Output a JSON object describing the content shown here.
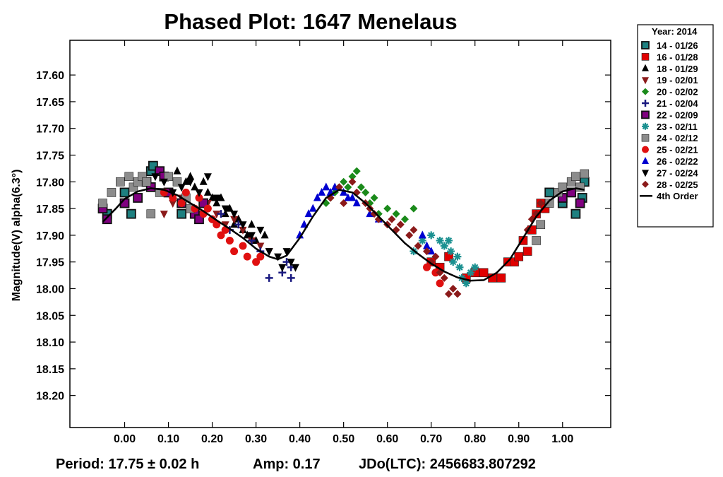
{
  "chart_data": {
    "type": "scatter",
    "title": "Phased Plot: 1647 Menelaus",
    "xlabel": "",
    "ylabel": "Magnitude(V) alpha(6.3°)",
    "xlim": [
      -0.125,
      1.11
    ],
    "ylim": [
      17.535,
      18.26
    ],
    "y_inverted": true,
    "x_ticks": [
      "0.00",
      "0.10",
      "0.20",
      "0.30",
      "0.40",
      "0.50",
      "0.60",
      "0.70",
      "0.80",
      "0.90",
      "1.00"
    ],
    "y_ticks": [
      "17.60",
      "17.65",
      "17.70",
      "17.75",
      "17.80",
      "17.85",
      "17.90",
      "17.95",
      "18.00",
      "18.05",
      "18.10",
      "18.15",
      "18.20"
    ],
    "legend_title": "Year: 2014",
    "legend_position": "outside-top-right",
    "footer": {
      "period": "Period: 17.75 ± 0.02 h",
      "amp": "Amp: 0.17",
      "jdo": "JDo(LTC): 2456683.807292"
    },
    "fit": {
      "name": "4th Order",
      "color": "#000000",
      "points": [
        [
          -0.05,
          17.875
        ],
        [
          -0.02,
          17.85
        ],
        [
          0.0,
          17.832
        ],
        [
          0.03,
          17.818
        ],
        [
          0.06,
          17.812
        ],
        [
          0.09,
          17.815
        ],
        [
          0.12,
          17.825
        ],
        [
          0.15,
          17.84
        ],
        [
          0.18,
          17.855
        ],
        [
          0.21,
          17.872
        ],
        [
          0.24,
          17.888
        ],
        [
          0.27,
          17.905
        ],
        [
          0.3,
          17.925
        ],
        [
          0.33,
          17.94
        ],
        [
          0.35,
          17.945
        ],
        [
          0.37,
          17.938
        ],
        [
          0.4,
          17.905
        ],
        [
          0.43,
          17.865
        ],
        [
          0.46,
          17.83
        ],
        [
          0.49,
          17.815
        ],
        [
          0.52,
          17.82
        ],
        [
          0.55,
          17.84
        ],
        [
          0.58,
          17.865
        ],
        [
          0.61,
          17.89
        ],
        [
          0.64,
          17.915
        ],
        [
          0.67,
          17.935
        ],
        [
          0.7,
          17.953
        ],
        [
          0.73,
          17.968
        ],
        [
          0.76,
          17.979
        ],
        [
          0.79,
          17.985
        ],
        [
          0.82,
          17.984
        ],
        [
          0.85,
          17.97
        ],
        [
          0.88,
          17.945
        ],
        [
          0.91,
          17.905
        ],
        [
          0.94,
          17.865
        ],
        [
          0.97,
          17.835
        ],
        [
          1.0,
          17.818
        ],
        [
          1.03,
          17.812
        ],
        [
          1.05,
          17.815
        ]
      ]
    },
    "series": [
      {
        "name": "14 - 01/26",
        "marker": "square-outline",
        "color": "#1e8080",
        "points": [
          [
            -0.04,
            17.86
          ],
          [
            0.0,
            17.82
          ],
          [
            0.015,
            17.86
          ],
          [
            0.06,
            17.78
          ],
          [
            0.065,
            17.77
          ],
          [
            0.13,
            17.86
          ],
          [
            0.97,
            17.82
          ],
          [
            1.0,
            17.84
          ],
          [
            1.03,
            17.86
          ],
          [
            1.045,
            17.83
          ],
          [
            1.05,
            17.8
          ]
        ]
      },
      {
        "name": "16 - 01/28",
        "marker": "square",
        "color": "#e00000",
        "points": [
          [
            0.7,
            17.95
          ],
          [
            0.72,
            17.96
          ],
          [
            0.74,
            17.94
          ],
          [
            0.78,
            17.98
          ],
          [
            0.8,
            17.97
          ],
          [
            0.82,
            17.97
          ],
          [
            0.84,
            17.98
          ],
          [
            0.86,
            17.98
          ],
          [
            0.875,
            17.95
          ],
          [
            0.89,
            17.95
          ],
          [
            0.9,
            17.94
          ],
          [
            0.91,
            17.91
          ],
          [
            0.92,
            17.93
          ],
          [
            0.93,
            17.89
          ],
          [
            0.94,
            17.86
          ],
          [
            0.95,
            17.84
          ],
          [
            0.96,
            17.85
          ]
        ]
      },
      {
        "name": "18 - 01/29",
        "marker": "triangle-up",
        "color": "#000000",
        "points": [
          [
            0.08,
            17.78
          ],
          [
            0.1,
            17.79
          ],
          [
            0.12,
            17.78
          ],
          [
            0.14,
            17.8
          ],
          [
            0.15,
            17.79
          ],
          [
            0.16,
            17.81
          ],
          [
            0.18,
            17.8
          ],
          [
            0.19,
            17.82
          ],
          [
            0.2,
            17.83
          ],
          [
            0.21,
            17.84
          ],
          [
            0.22,
            17.83
          ],
          [
            0.23,
            17.86
          ],
          [
            0.24,
            17.85
          ],
          [
            0.25,
            17.88
          ],
          [
            0.26,
            17.87
          ],
          [
            0.27,
            17.89
          ],
          [
            0.28,
            17.9
          ],
          [
            0.29,
            17.88
          ],
          [
            0.3,
            17.91
          ],
          [
            0.32,
            17.9
          ]
        ]
      },
      {
        "name": "19 - 02/01",
        "marker": "triangle-down",
        "color": "#8b1a1a",
        "points": [
          [
            0.09,
            17.86
          ],
          [
            0.11,
            17.84
          ],
          [
            0.13,
            17.83
          ],
          [
            0.15,
            17.85
          ],
          [
            0.17,
            17.86
          ],
          [
            0.19,
            17.84
          ],
          [
            0.21,
            17.86
          ],
          [
            0.23,
            17.88
          ],
          [
            0.25,
            17.87
          ],
          [
            0.27,
            17.89
          ],
          [
            0.29,
            17.91
          ],
          [
            0.31,
            17.92
          ],
          [
            0.33,
            17.93
          ]
        ]
      },
      {
        "name": "20 - 02/02",
        "marker": "diamond",
        "color": "#1a8a1a",
        "points": [
          [
            0.46,
            17.84
          ],
          [
            0.47,
            17.83
          ],
          [
            0.48,
            17.82
          ],
          [
            0.49,
            17.81
          ],
          [
            0.5,
            17.8
          ],
          [
            0.51,
            17.81
          ],
          [
            0.52,
            17.79
          ],
          [
            0.53,
            17.78
          ],
          [
            0.54,
            17.81
          ],
          [
            0.55,
            17.82
          ],
          [
            0.56,
            17.84
          ],
          [
            0.57,
            17.83
          ],
          [
            0.58,
            17.86
          ],
          [
            0.6,
            17.85
          ],
          [
            0.62,
            17.86
          ],
          [
            0.64,
            17.87
          ],
          [
            0.66,
            17.85
          ]
        ]
      },
      {
        "name": "21 - 02/04",
        "marker": "plus",
        "color": "#1a1a80",
        "points": [
          [
            0.2,
            17.87
          ],
          [
            0.22,
            17.86
          ],
          [
            0.24,
            17.89
          ],
          [
            0.26,
            17.88
          ],
          [
            0.29,
            17.91
          ],
          [
            0.31,
            17.93
          ],
          [
            0.33,
            17.98
          ],
          [
            0.36,
            17.97
          ],
          [
            0.37,
            17.95
          ],
          [
            0.38,
            17.98
          ],
          [
            0.38,
            17.96
          ]
        ]
      },
      {
        "name": "22 - 02/09",
        "marker": "square-outline",
        "color": "#800080",
        "points": [
          [
            -0.05,
            17.85
          ],
          [
            -0.04,
            17.87
          ],
          [
            0.0,
            17.84
          ],
          [
            0.03,
            17.83
          ],
          [
            0.05,
            17.8
          ],
          [
            0.06,
            17.81
          ],
          [
            0.08,
            17.78
          ],
          [
            0.09,
            17.79
          ],
          [
            0.1,
            17.82
          ],
          [
            0.13,
            17.84
          ],
          [
            0.16,
            17.86
          ],
          [
            0.17,
            17.87
          ],
          [
            0.18,
            17.84
          ],
          [
            1.0,
            17.83
          ],
          [
            1.02,
            17.82
          ],
          [
            1.04,
            17.84
          ]
        ]
      },
      {
        "name": "23 - 02/11",
        "marker": "asterisk",
        "color": "#1a9090",
        "points": [
          [
            0.66,
            17.93
          ],
          [
            0.68,
            17.91
          ],
          [
            0.7,
            17.9
          ],
          [
            0.72,
            17.91
          ],
          [
            0.73,
            17.92
          ],
          [
            0.74,
            17.91
          ],
          [
            0.745,
            17.93
          ],
          [
            0.75,
            17.95
          ],
          [
            0.76,
            17.94
          ],
          [
            0.765,
            17.96
          ],
          [
            0.77,
            17.98
          ],
          [
            0.78,
            17.99
          ],
          [
            0.79,
            17.97
          ],
          [
            0.8,
            17.96
          ]
        ]
      },
      {
        "name": "24 - 02/12",
        "marker": "square",
        "color": "#8c8c8c",
        "points": [
          [
            -0.05,
            17.84
          ],
          [
            -0.03,
            17.82
          ],
          [
            -0.01,
            17.8
          ],
          [
            0.01,
            17.79
          ],
          [
            0.02,
            17.81
          ],
          [
            0.03,
            17.8
          ],
          [
            0.04,
            17.79
          ],
          [
            0.05,
            17.8
          ],
          [
            0.06,
            17.86
          ],
          [
            0.08,
            17.82
          ],
          [
            0.1,
            17.79
          ],
          [
            0.12,
            17.8
          ],
          [
            0.14,
            17.83
          ],
          [
            0.15,
            17.85
          ],
          [
            0.94,
            17.91
          ],
          [
            0.95,
            17.88
          ],
          [
            0.97,
            17.84
          ],
          [
            0.99,
            17.82
          ],
          [
            1.0,
            17.81
          ],
          [
            1.02,
            17.8
          ],
          [
            1.03,
            17.79
          ],
          [
            1.04,
            17.81
          ],
          [
            1.05,
            17.785
          ]
        ]
      },
      {
        "name": "25 - 02/21",
        "marker": "circle",
        "color": "#e01010",
        "points": [
          [
            0.09,
            17.82
          ],
          [
            0.11,
            17.83
          ],
          [
            0.13,
            17.84
          ],
          [
            0.14,
            17.82
          ],
          [
            0.16,
            17.85
          ],
          [
            0.17,
            17.83
          ],
          [
            0.18,
            17.86
          ],
          [
            0.19,
            17.85
          ],
          [
            0.2,
            17.87
          ],
          [
            0.21,
            17.88
          ],
          [
            0.22,
            17.9
          ],
          [
            0.23,
            17.89
          ],
          [
            0.24,
            17.91
          ],
          [
            0.25,
            17.93
          ],
          [
            0.27,
            17.92
          ],
          [
            0.28,
            17.94
          ],
          [
            0.3,
            17.95
          ],
          [
            0.31,
            17.94
          ],
          [
            0.69,
            17.96
          ],
          [
            0.71,
            17.97
          ],
          [
            0.72,
            17.99
          ]
        ]
      },
      {
        "name": "26 - 02/22",
        "marker": "triangle-up",
        "color": "#0000d0",
        "points": [
          [
            0.4,
            17.9
          ],
          [
            0.41,
            17.88
          ],
          [
            0.42,
            17.86
          ],
          [
            0.43,
            17.85
          ],
          [
            0.44,
            17.83
          ],
          [
            0.45,
            17.82
          ],
          [
            0.46,
            17.81
          ],
          [
            0.47,
            17.82
          ],
          [
            0.48,
            17.81
          ],
          [
            0.5,
            17.82
          ],
          [
            0.51,
            17.83
          ],
          [
            0.52,
            17.83
          ],
          [
            0.53,
            17.84
          ],
          [
            0.56,
            17.86
          ],
          [
            0.58,
            17.87
          ],
          [
            0.68,
            17.9
          ],
          [
            0.69,
            17.92
          ],
          [
            0.7,
            17.93
          ]
        ]
      },
      {
        "name": "27 - 02/24",
        "marker": "triangle-down",
        "color": "#000000",
        "points": [
          [
            0.07,
            17.79
          ],
          [
            0.09,
            17.8
          ],
          [
            0.11,
            17.82
          ],
          [
            0.13,
            17.81
          ],
          [
            0.15,
            17.8
          ],
          [
            0.17,
            17.82
          ],
          [
            0.19,
            17.79
          ],
          [
            0.21,
            17.83
          ],
          [
            0.23,
            17.85
          ],
          [
            0.25,
            17.86
          ],
          [
            0.27,
            17.88
          ],
          [
            0.29,
            17.9
          ],
          [
            0.31,
            17.89
          ],
          [
            0.33,
            17.93
          ],
          [
            0.35,
            17.94
          ],
          [
            0.36,
            17.96
          ],
          [
            0.37,
            17.93
          ],
          [
            0.38,
            17.95
          ],
          [
            0.39,
            17.96
          ]
        ]
      },
      {
        "name": "28 - 02/25",
        "marker": "diamond",
        "color": "#8b1a1a",
        "points": [
          [
            0.47,
            17.83
          ],
          [
            0.49,
            17.81
          ],
          [
            0.5,
            17.84
          ],
          [
            0.52,
            17.8
          ],
          [
            0.53,
            17.82
          ],
          [
            0.55,
            17.84
          ],
          [
            0.56,
            17.85
          ],
          [
            0.57,
            17.86
          ],
          [
            0.58,
            17.87
          ],
          [
            0.6,
            17.88
          ],
          [
            0.61,
            17.87
          ],
          [
            0.62,
            17.89
          ],
          [
            0.63,
            17.88
          ],
          [
            0.65,
            17.9
          ],
          [
            0.66,
            17.89
          ],
          [
            0.67,
            17.92
          ],
          [
            0.69,
            17.93
          ],
          [
            0.7,
            17.95
          ],
          [
            0.71,
            17.94
          ],
          [
            0.72,
            17.97
          ],
          [
            0.73,
            17.98
          ],
          [
            0.74,
            18.01
          ],
          [
            0.75,
            18.0
          ],
          [
            0.76,
            18.01
          ],
          [
            0.92,
            17.89
          ],
          [
            0.93,
            17.87
          ],
          [
            0.94,
            17.86
          ],
          [
            0.95,
            17.84
          ]
        ]
      }
    ]
  }
}
